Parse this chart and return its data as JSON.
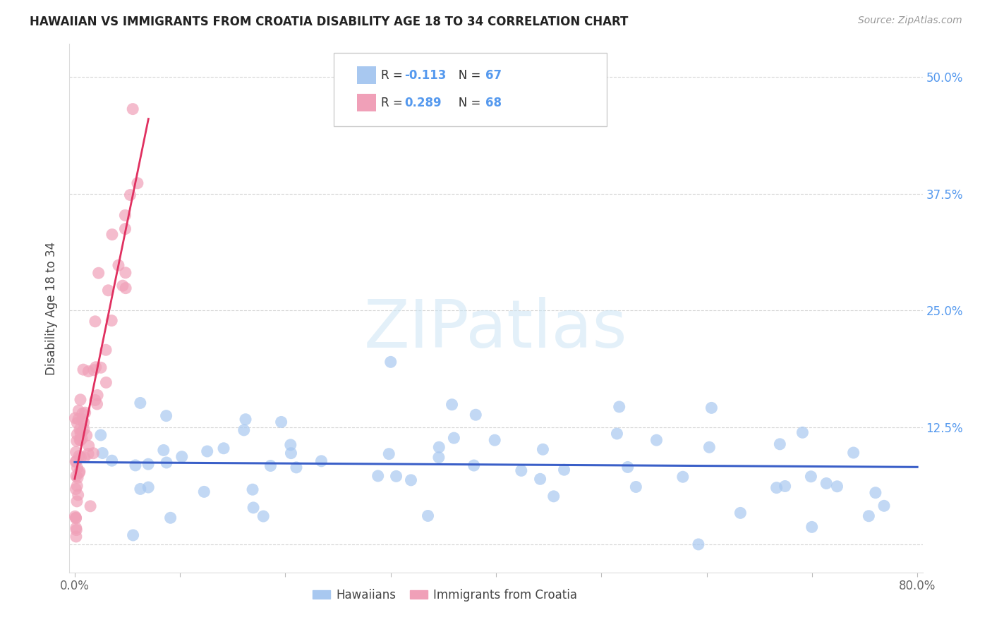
{
  "title": "HAWAIIAN VS IMMIGRANTS FROM CROATIA DISABILITY AGE 18 TO 34 CORRELATION CHART",
  "source": "Source: ZipAtlas.com",
  "ylabel": "Disability Age 18 to 34",
  "xlim": [
    -0.005,
    0.805
  ],
  "ylim": [
    -0.03,
    0.535
  ],
  "yticks": [
    0.0,
    0.125,
    0.25,
    0.375,
    0.5
  ],
  "right_ytick_labels": [
    "",
    "12.5%",
    "25.0%",
    "37.5%",
    "50.0%"
  ],
  "xtick_positions": [
    0.0,
    0.1,
    0.2,
    0.3,
    0.4,
    0.5,
    0.6,
    0.7,
    0.8
  ],
  "xtick_labels": [
    "0.0%",
    "",
    "",
    "",
    "",
    "",
    "",
    "",
    "80.0%"
  ],
  "hawaiians_color": "#a8c8f0",
  "croatia_color": "#f0a0b8",
  "trend_blue_color": "#3a5fc8",
  "trend_pink_color": "#e03060",
  "R_hawaiians": -0.113,
  "N_hawaiians": 67,
  "R_croatia": 0.289,
  "N_croatia": 68,
  "watermark": "ZIPatlas",
  "legend_label_1": "Hawaiians",
  "legend_label_2": "Immigrants from Croatia",
  "title_fontsize": 12,
  "source_fontsize": 10,
  "tick_label_fontsize": 12,
  "ylabel_fontsize": 12,
  "legend_fontsize": 12,
  "watermark_fontsize": 68
}
